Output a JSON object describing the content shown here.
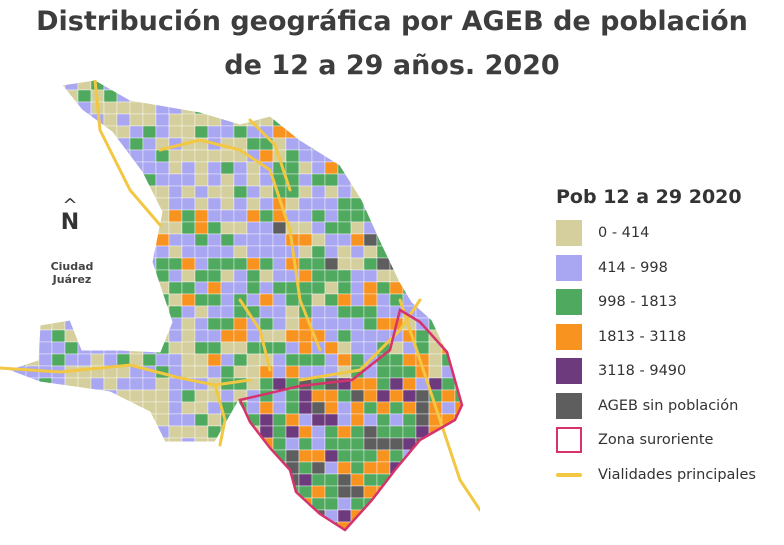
{
  "title_line1": "Distribución geográfica por AGEB de población",
  "title_line2": "de  12 a 29 años. 2020",
  "north_label": "N",
  "city_label_line1": "Ciudad",
  "city_label_line2": "Juárez",
  "legend": {
    "title": "Pob 12 a 29 2020",
    "items": [
      {
        "label": "0 - 414",
        "color": "#d4cf9c",
        "type": "fill"
      },
      {
        "label": "414 - 998",
        "color": "#a9a6f2",
        "type": "fill"
      },
      {
        "label": "998 - 1813",
        "color": "#4fa95f",
        "type": "fill"
      },
      {
        "label": "1813 - 3118",
        "color": "#f7931e",
        "type": "fill"
      },
      {
        "label": "3118 - 9490",
        "color": "#6e3a7e",
        "type": "fill"
      },
      {
        "label": "AGEB sin población",
        "color": "#5e5e5e",
        "type": "fill"
      },
      {
        "label": "Zona suroriente",
        "color": "#d6336c",
        "type": "outline"
      },
      {
        "label": "Vialidades principales",
        "color": "#f2c744",
        "type": "line"
      }
    ]
  }
}
